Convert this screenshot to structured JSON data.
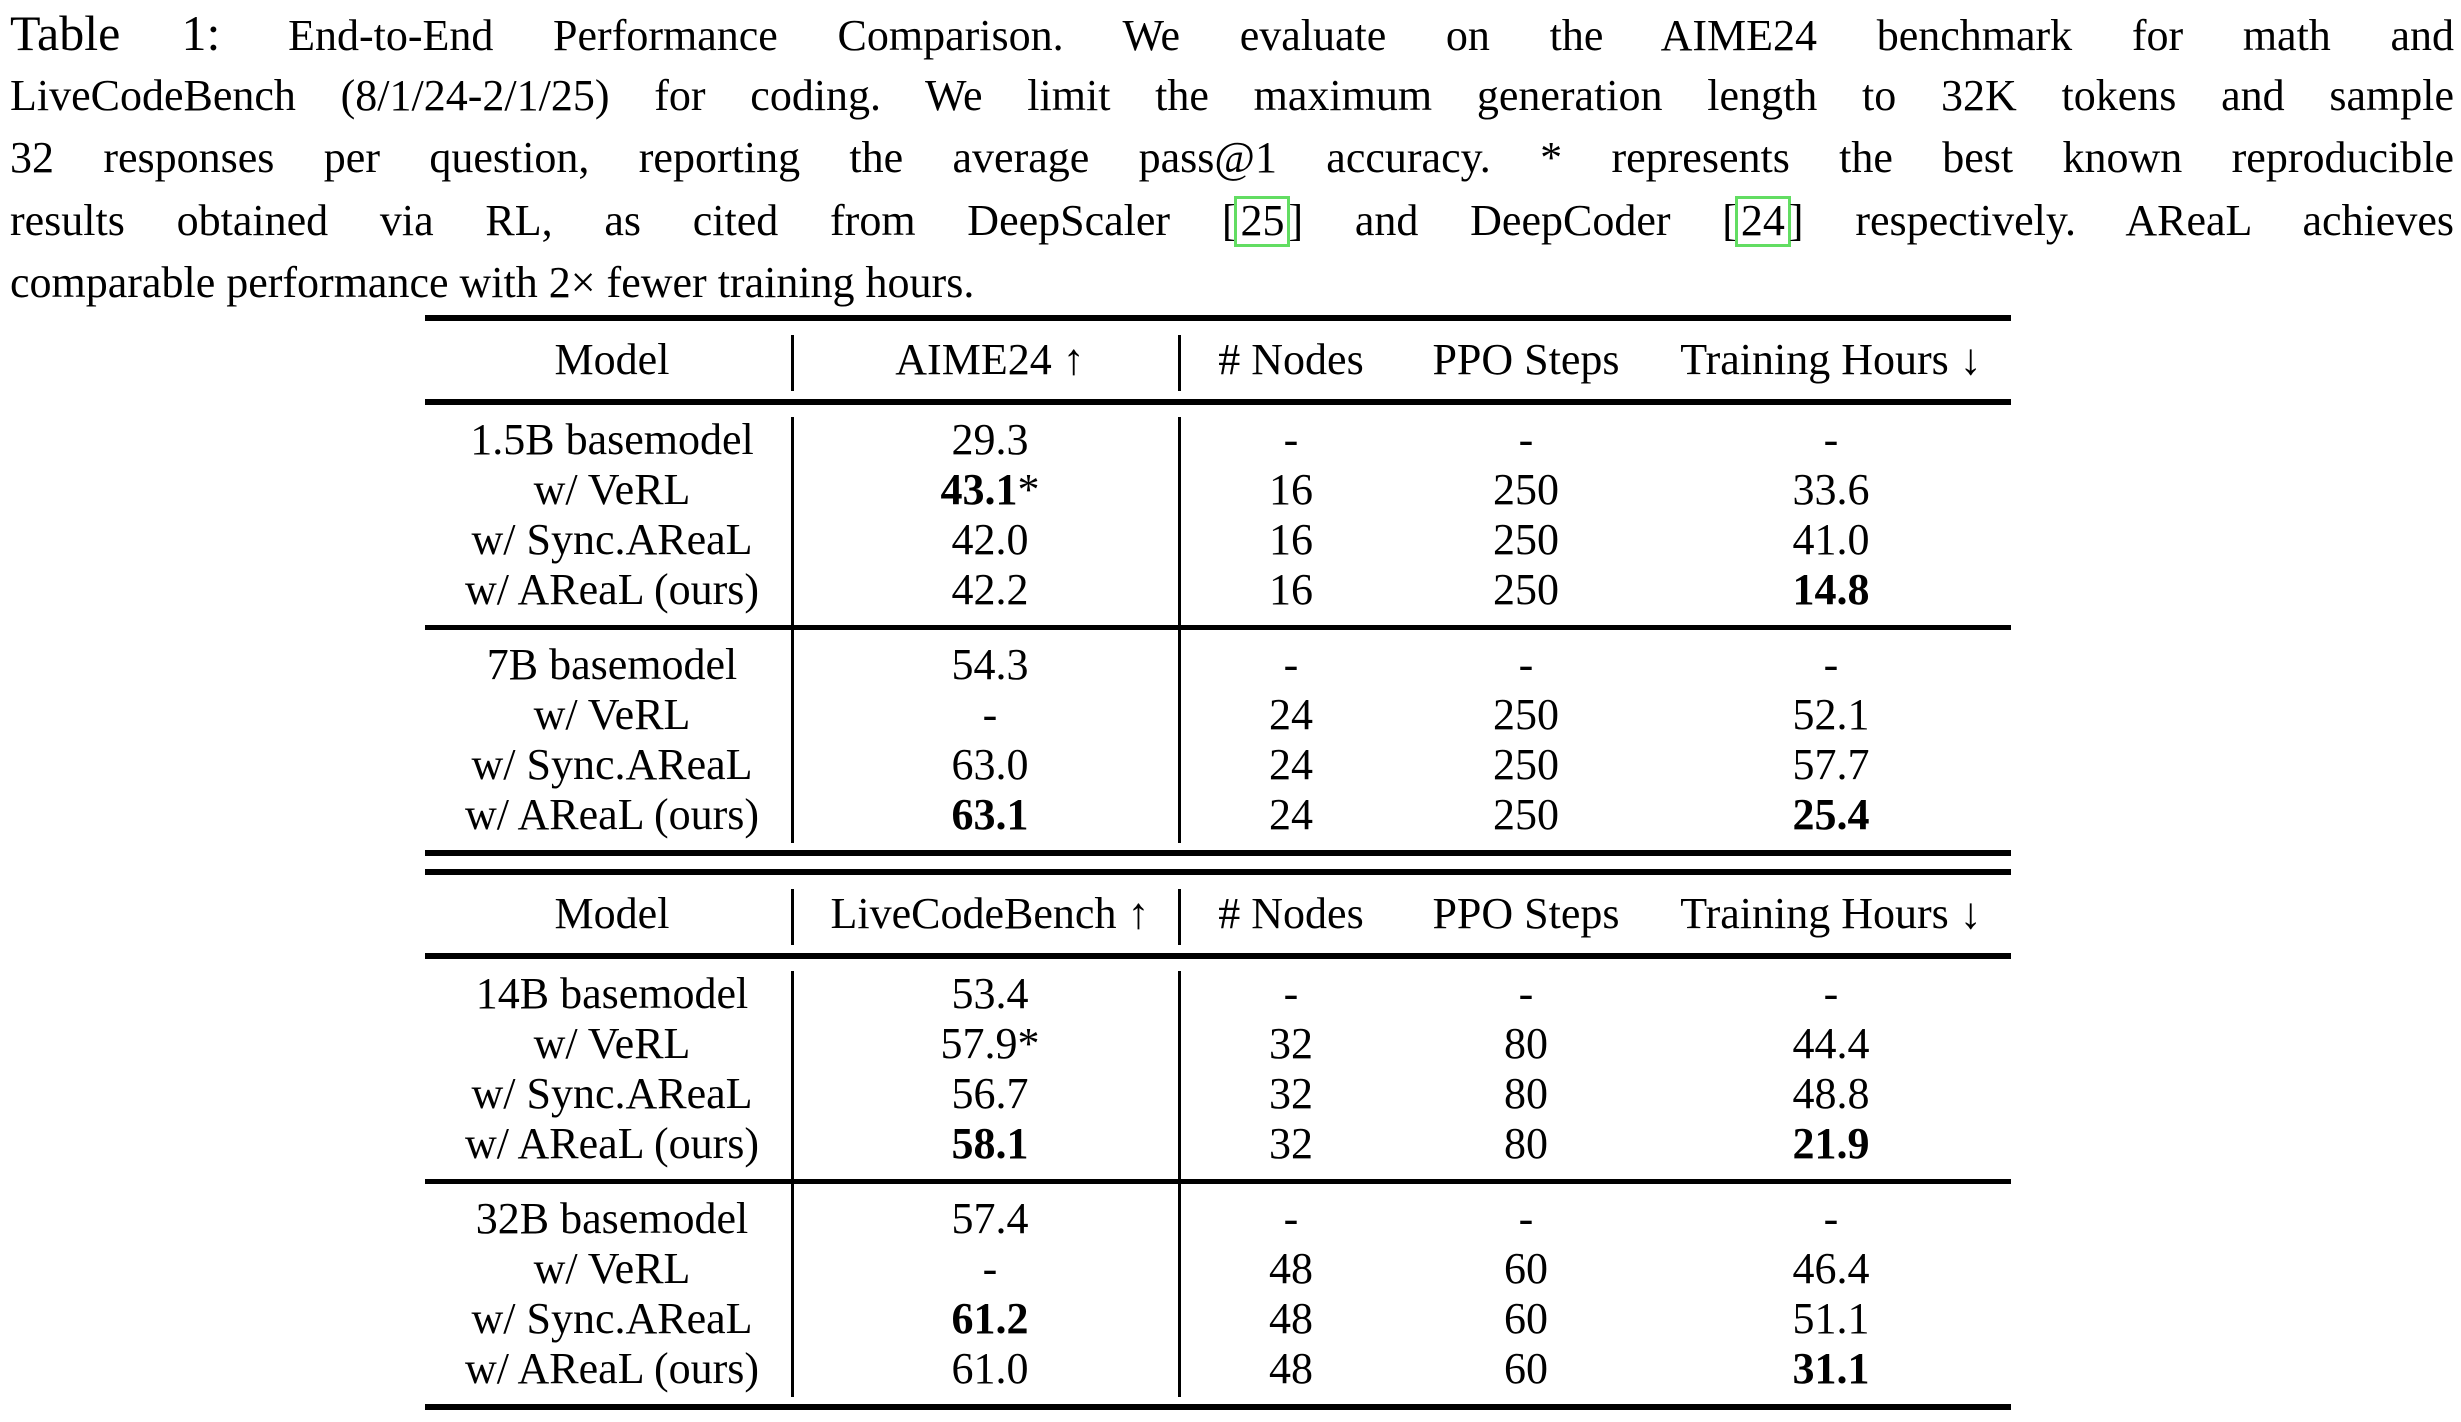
{
  "caption": {
    "lines": [
      [
        {
          "t": "Table 1:",
          "style": "label"
        },
        {
          "t": "End-to-End Performance Comparison.  We evaluate on the AIME24 benchmark for math and"
        }
      ],
      [
        {
          "t": "LiveCodeBench (8/1/24-2/1/25) for coding. We limit the maximum generation length to 32K tokens and sample"
        }
      ],
      [
        {
          "t": "32 responses per question, reporting the average pass@1 accuracy. * represents the best known reproducible"
        }
      ],
      [
        {
          "t": "results obtained via RL, as cited from DeepScaler ["
        },
        {
          "t": "25",
          "style": "ref"
        },
        {
          "t": "] and DeepCoder ["
        },
        {
          "t": "24",
          "style": "ref"
        },
        {
          "t": "] respectively.  AReaL achieves"
        }
      ],
      [
        {
          "t": "comparable performance with 2× fewer training hours."
        }
      ]
    ]
  },
  "colors": {
    "citation_border": "#62dd62",
    "rule": "#000000",
    "background": "#ffffff"
  },
  "tables": [
    {
      "id": "aime24",
      "headers": [
        "Model",
        "AIME24 ↑",
        "# Nodes",
        "PPO Steps",
        "Training Hours ↓"
      ],
      "groups": [
        {
          "rows": [
            {
              "cells": [
                "1.5B basemodel",
                "29.3",
                "-",
                "-",
                "-"
              ]
            },
            {
              "cells": [
                "w/ VeRL",
                [
                  {
                    "t": "43.1",
                    "b": true
                  },
                  {
                    "t": "*"
                  }
                ],
                "16",
                "250",
                "33.6"
              ]
            },
            {
              "cells": [
                "w/ Sync.AReaL",
                "42.0",
                "16",
                "250",
                "41.0"
              ]
            },
            {
              "cells": [
                "w/ AReaL (ours)",
                "42.2",
                "16",
                "250",
                {
                  "t": "14.8",
                  "b": true
                }
              ]
            }
          ]
        },
        {
          "rows": [
            {
              "cells": [
                "7B basemodel",
                "54.3",
                "-",
                "-",
                "-"
              ]
            },
            {
              "cells": [
                "w/ VeRL",
                "-",
                "24",
                "250",
                "52.1"
              ]
            },
            {
              "cells": [
                "w/ Sync.AReaL",
                "63.0",
                "24",
                "250",
                "57.7"
              ]
            },
            {
              "cells": [
                "w/ AReaL (ours)",
                {
                  "t": "63.1",
                  "b": true
                },
                "24",
                "250",
                {
                  "t": "25.4",
                  "b": true
                }
              ]
            }
          ]
        }
      ]
    },
    {
      "id": "livecodebench",
      "headers": [
        "Model",
        "LiveCodeBench ↑",
        "# Nodes",
        "PPO Steps",
        "Training Hours ↓"
      ],
      "groups": [
        {
          "rows": [
            {
              "cells": [
                "14B basemodel",
                "53.4",
                "-",
                "-",
                "-"
              ]
            },
            {
              "cells": [
                "w/ VeRL",
                "57.9*",
                "32",
                "80",
                "44.4"
              ]
            },
            {
              "cells": [
                "w/ Sync.AReaL",
                "56.7",
                "32",
                "80",
                "48.8"
              ]
            },
            {
              "cells": [
                "w/ AReaL (ours)",
                {
                  "t": "58.1",
                  "b": true
                },
                "32",
                "80",
                {
                  "t": "21.9",
                  "b": true
                }
              ]
            }
          ]
        },
        {
          "rows": [
            {
              "cells": [
                "32B basemodel",
                "57.4",
                "-",
                "-",
                "-"
              ]
            },
            {
              "cells": [
                "w/ VeRL",
                "-",
                "48",
                "60",
                "46.4"
              ]
            },
            {
              "cells": [
                "w/ Sync.AReaL",
                {
                  "t": "61.2",
                  "b": true
                },
                "48",
                "60",
                "51.1"
              ]
            },
            {
              "cells": [
                "w/ AReaL (ours)",
                "61.0",
                "48",
                "60",
                {
                  "t": "31.1",
                  "b": true
                }
              ]
            }
          ]
        }
      ]
    }
  ]
}
